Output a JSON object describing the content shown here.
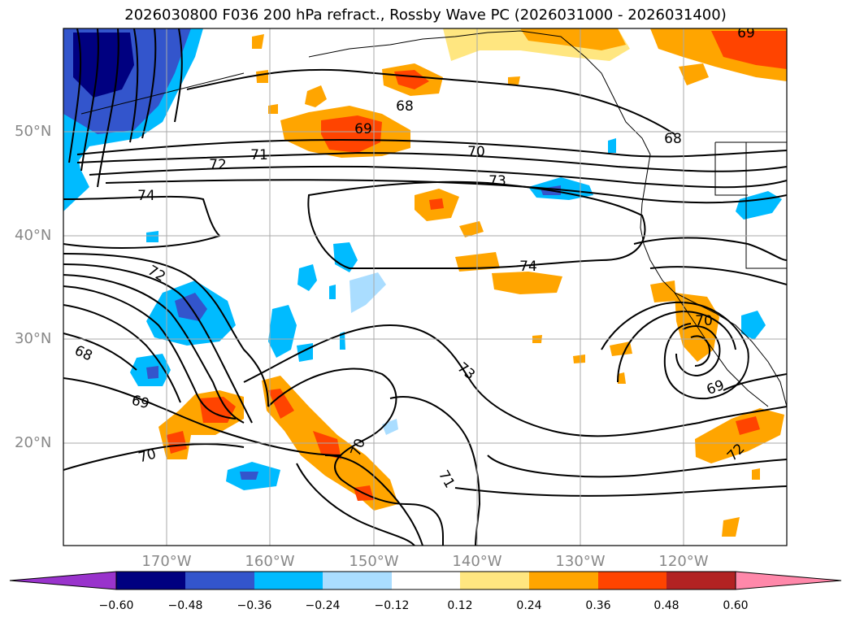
{
  "title": "2026030800 F036 200 hPa refract., Rossby Wave PC (2026031000 - 2026031400)",
  "map": {
    "lat_labels": [
      "50°N",
      "40°N",
      "30°N",
      "20°N"
    ],
    "lon_labels": [
      "170°W",
      "160°W",
      "150°W",
      "140°W",
      "130°W",
      "120°W"
    ],
    "contour_labels": [
      "69",
      "68",
      "69",
      "71",
      "72",
      "70",
      "73",
      "68",
      "74",
      "74",
      "72",
      "68",
      "69",
      "70",
      "73",
      "70",
      "71",
      "70",
      "69",
      "72"
    ]
  },
  "colorbar": {
    "ticks": [
      "−0.60",
      "−0.48",
      "−0.36",
      "−0.24",
      "−0.12",
      "0.12",
      "0.24",
      "0.36",
      "0.48",
      "0.60"
    ],
    "colors": [
      "#9933cc",
      "#000080",
      "#3355cc",
      "#00bbff",
      "#aaddff",
      "#ffffff",
      "#ffe680",
      "#ffa500",
      "#ff4400",
      "#b22222",
      "#ff88aa"
    ]
  }
}
